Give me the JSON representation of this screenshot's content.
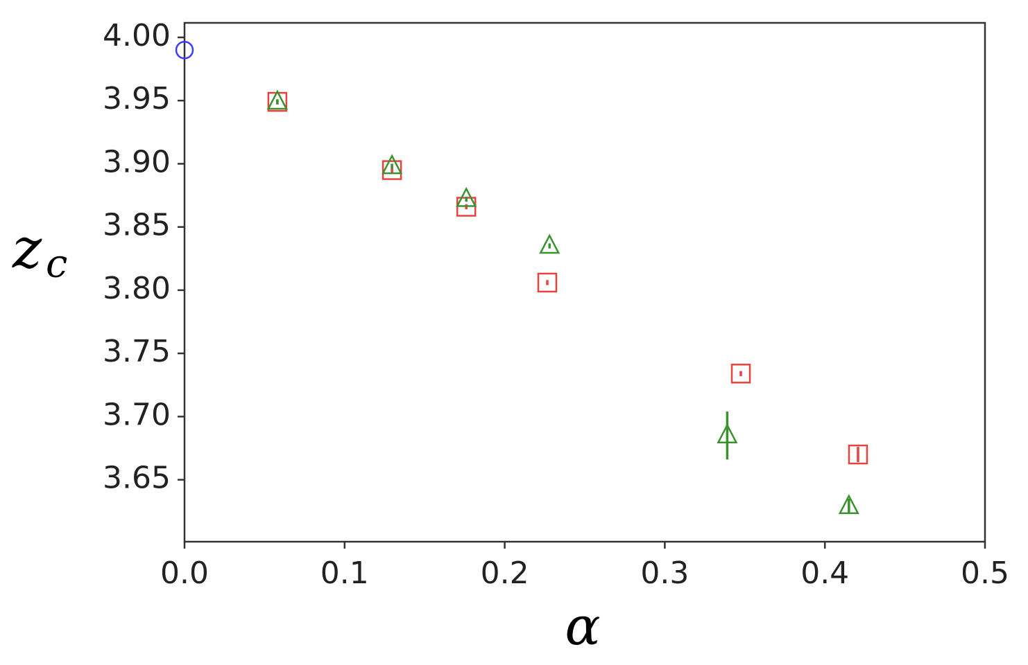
{
  "chart_data": {
    "type": "scatter",
    "xlabel": "α",
    "ylabel": {
      "main": "z",
      "sub": "c"
    },
    "xlim": [
      0,
      0.5
    ],
    "ylim": [
      3.601,
      4.0115
    ],
    "xticks": [
      {
        "value": 0,
        "label": "0.0"
      },
      0.1,
      0.2,
      0.3,
      0.4,
      0.5
    ],
    "yticks": [
      {
        "value": 3.65,
        "label": "3.65"
      },
      {
        "value": 3.7,
        "label": "3.70"
      },
      {
        "value": 3.75,
        "label": "3.75"
      },
      {
        "value": 3.8,
        "label": "3.80"
      },
      {
        "value": 3.85,
        "label": "3.85"
      },
      {
        "value": 3.9,
        "label": "3.90"
      },
      {
        "value": 3.95,
        "label": "3.95"
      },
      {
        "value": 4,
        "label": "4.00"
      }
    ],
    "series": [
      {
        "marker": "circle",
        "color": "#3b3bf5",
        "x": [
          0
        ],
        "values": [
          3.99
        ],
        "errors": [
          0
        ]
      },
      {
        "marker": "square",
        "color": "#e8423a",
        "x": [
          0.058,
          0.1296,
          0.176,
          0.2266,
          0.3475,
          0.4207
        ],
        "values": [
          3.949,
          3.895,
          3.866,
          3.806,
          3.734,
          3.67
        ],
        "errors": [
          0.002,
          0.002,
          0.002,
          0.002,
          0.002,
          0.006
        ]
      },
      {
        "marker": "triangle",
        "color": "#3a9130",
        "x": [
          0.058,
          0.1296,
          0.176,
          0.228,
          0.339,
          0.415
        ],
        "values": [
          3.949,
          3.898,
          3.872,
          3.835,
          3.685,
          3.629
        ],
        "errors": [
          0.002,
          0.002,
          0.002,
          0.002,
          0.019,
          0.006
        ]
      }
    ]
  }
}
